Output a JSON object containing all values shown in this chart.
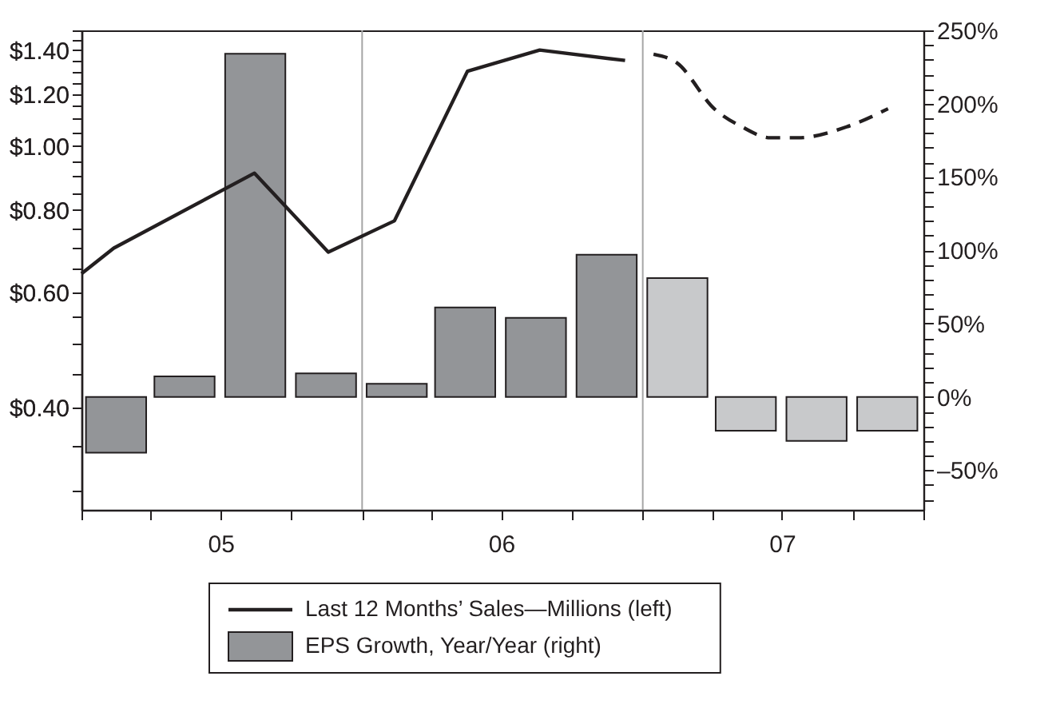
{
  "chart_data": {
    "type": "bar",
    "log": "y",
    "legend": "bottom",
    "xlim": [
      "2005-01-01",
      "2008-01-01"
    ],
    "xticks": [
      {
        "value": "2005-01-01",
        "label": null
      },
      {
        "value": "2005-04-01",
        "label": null
      },
      {
        "value": "2005-07-01",
        "label": "05"
      },
      {
        "value": "2005-10-01",
        "label": null
      },
      {
        "value": "2006-01-01",
        "label": null
      },
      {
        "value": "2006-04-01",
        "label": null
      },
      {
        "value": "2006-07-01",
        "label": "06"
      },
      {
        "value": "2006-10-01",
        "label": null
      },
      {
        "value": "2007-01-01",
        "label": null
      },
      {
        "value": "2007-04-01",
        "label": null
      },
      {
        "value": "2007-07-01",
        "label": "07"
      },
      {
        "value": "2007-10-01",
        "label": null
      },
      {
        "value": "2008-01-01",
        "label": null
      }
    ],
    "ylim": [
      0.28,
      1.5
    ],
    "yticks": [
      {
        "value": 0.3,
        "label": null
      },
      {
        "value": 0.35,
        "label": null
      },
      {
        "value": 0.4,
        "label": "$0.40"
      },
      {
        "value": 0.45,
        "label": null
      },
      {
        "value": 0.5,
        "label": null
      },
      {
        "value": 0.55,
        "label": null
      },
      {
        "value": 0.6,
        "label": "$0.60"
      },
      {
        "value": 0.65,
        "label": null
      },
      {
        "value": 0.7,
        "label": null
      },
      {
        "value": 0.75,
        "label": null
      },
      {
        "value": 0.8,
        "label": "$0.80"
      },
      {
        "value": 0.85,
        "label": null
      },
      {
        "value": 0.9,
        "label": null
      },
      {
        "value": 0.95,
        "label": null
      },
      {
        "value": 1.0,
        "label": "$1.00"
      },
      {
        "value": 1.05,
        "label": null
      },
      {
        "value": 1.1,
        "label": null
      },
      {
        "value": 1.15,
        "label": null
      },
      {
        "value": 1.2,
        "label": "$1.20"
      },
      {
        "value": 1.25,
        "label": null
      },
      {
        "value": 1.3,
        "label": null
      },
      {
        "value": 1.35,
        "label": null
      },
      {
        "value": 1.4,
        "label": "$1.40"
      },
      {
        "value": 1.45,
        "label": null
      },
      {
        "value": 1.5,
        "label": null
      }
    ],
    "y2lim": [
      -77,
      250
    ],
    "y2ticks": [
      {
        "value": -70,
        "label": null
      },
      {
        "value": -60,
        "label": null
      },
      {
        "value": -50,
        "label": "–50%"
      },
      {
        "value": -40,
        "label": null
      },
      {
        "value": -30,
        "label": null
      },
      {
        "value": -20,
        "label": null
      },
      {
        "value": -10,
        "label": null
      },
      {
        "value": 0,
        "label": "0%"
      },
      {
        "value": 10,
        "label": null
      },
      {
        "value": 20,
        "label": null
      },
      {
        "value": 30,
        "label": null
      },
      {
        "value": 40,
        "label": null
      },
      {
        "value": 50,
        "label": "50%"
      },
      {
        "value": 60,
        "label": null
      },
      {
        "value": 70,
        "label": null
      },
      {
        "value": 80,
        "label": null
      },
      {
        "value": 90,
        "label": null
      },
      {
        "value": 100,
        "label": "100%"
      },
      {
        "value": 110,
        "label": null
      },
      {
        "value": 120,
        "label": null
      },
      {
        "value": 130,
        "label": null
      },
      {
        "value": 140,
        "label": null
      },
      {
        "value": 150,
        "label": "150%"
      },
      {
        "value": 160,
        "label": null
      },
      {
        "value": 170,
        "label": null
      },
      {
        "value": 180,
        "label": null
      },
      {
        "value": 190,
        "label": null
      },
      {
        "value": 200,
        "label": "200%"
      },
      {
        "value": 210,
        "label": null
      },
      {
        "value": 220,
        "label": null
      },
      {
        "value": 230,
        "label": null
      },
      {
        "value": 240,
        "label": null
      },
      {
        "value": 250,
        "label": "250%"
      }
    ],
    "ref_lines": [
      {
        "axis": "x",
        "value": "2006-01-01",
        "color": "#a6a6a6"
      },
      {
        "axis": "x",
        "value": "2007-01-01",
        "color": "#a6a6a6"
      }
    ],
    "series": [
      {
        "name": "Last 12 Months’ Sales—Millions (left)",
        "type": "line",
        "line_style": "solid",
        "color": "#231f20",
        "x": [
          "2005-01-01",
          "2005-02-12",
          "2005-08-14",
          "2005-11-18",
          "2006-02-12",
          "2006-05-18",
          "2006-08-20",
          "2006-12-09"
        ],
        "values": [
          0.64,
          0.7,
          0.91,
          0.69,
          0.77,
          1.3,
          1.4,
          1.35
        ]
      },
      {
        "name": "EPS Growth, Year/Year (right)",
        "axis": "y2",
        "color": "#939598",
        "colors": [
          "#939598",
          "#939598",
          "#939598",
          "#939598",
          "#939598",
          "#939598",
          "#939598",
          "#939598",
          "#c8c9cb",
          "#c8c9cb",
          "#c8c9cb",
          "#c8c9cb"
        ],
        "x": [
          "2005-02-15",
          "2005-05-15",
          "2005-08-15",
          "2005-11-15",
          "2006-02-15",
          "2006-05-15",
          "2006-08-15",
          "2006-11-15",
          "2007-02-15",
          "2007-05-15",
          "2007-08-15",
          "2007-11-15"
        ],
        "values": [
          -38,
          14,
          234,
          16,
          9,
          61,
          54,
          97,
          81,
          -23,
          -30,
          -23
        ]
      },
      {
        "type": "line",
        "line_style": "dashed",
        "color": "#231f20",
        "x": [
          "2007-01-15",
          "2007-02-14",
          "2007-04-04",
          "2007-05-10",
          "2007-06-16",
          "2007-07-22",
          "2007-09-23",
          "2007-11-16"
        ],
        "values": [
          1.38,
          1.34,
          1.14,
          1.07,
          1.03,
          1.03,
          1.07,
          1.14
        ]
      }
    ]
  }
}
